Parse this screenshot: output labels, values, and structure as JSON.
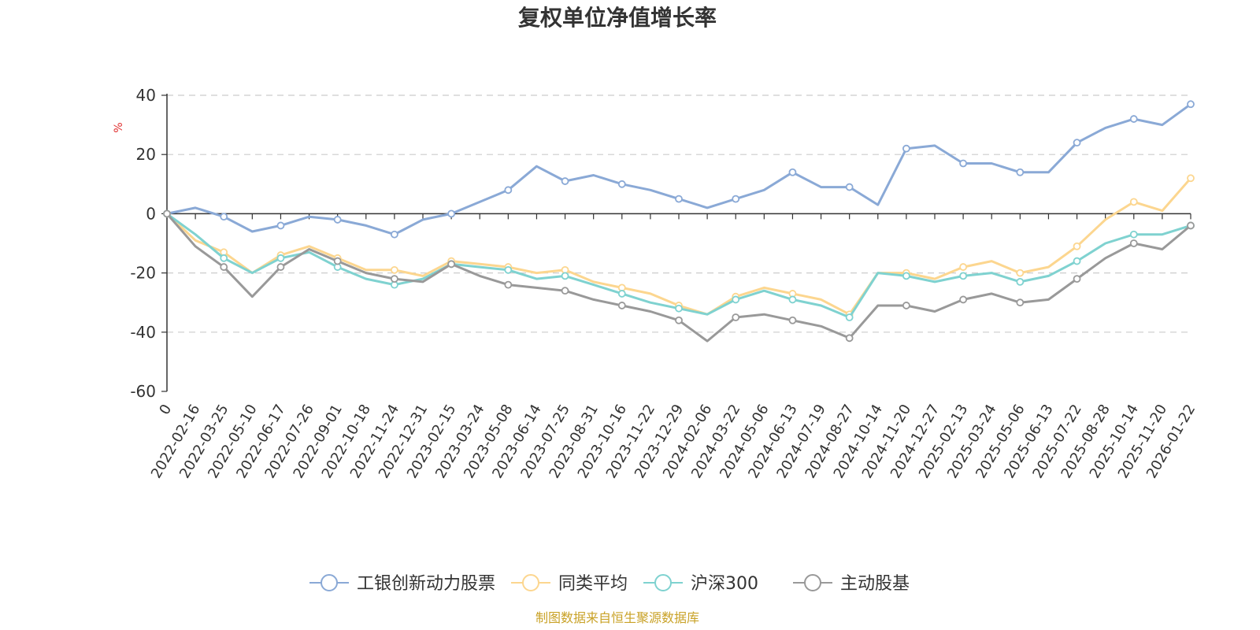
{
  "chart_data": {
    "type": "line",
    "title": "复权单位净值增长率",
    "unit": "%",
    "ylim": [
      -60,
      40
    ],
    "yticks": [
      "40",
      "20",
      "0",
      "-20",
      "-40",
      "-60"
    ],
    "grid": true,
    "legend_position": "bottom",
    "source": "制图数据来自恒生聚源数据库",
    "x_tick_labels": [
      "0",
      "2022-02-16",
      "2022-03-25",
      "2022-05-10",
      "2022-06-17",
      "2022-07-26",
      "2022-09-01",
      "2022-10-18",
      "2022-11-24",
      "2022-12-31",
      "2023-02-15",
      "2023-03-24",
      "2023-05-08",
      "2023-06-14",
      "2023-07-25",
      "2023-08-31",
      "2023-10-16",
      "2023-11-22",
      "2023-12-29",
      "2024-02-06",
      "2024-03-22",
      "2024-05-06",
      "2024-06-13",
      "2024-07-19",
      "2024-08-27",
      "2024-10-14",
      "2024-11-20",
      "2024-12-27",
      "2025-02-13",
      "2025-03-24",
      "2025-05-06",
      "2025-06-13",
      "2025-07-22",
      "2025-08-28",
      "2025-10-14",
      "2025-11-20",
      "2026-01-22"
    ],
    "series": [
      {
        "name": "工银创新动力股票",
        "color": "#8aa9d6",
        "values": [
          0,
          2,
          -1,
          -6,
          -4,
          -1,
          -2,
          -4,
          -7,
          -2,
          0,
          4,
          8,
          16,
          11,
          13,
          10,
          8,
          5,
          2,
          5,
          8,
          14,
          9,
          9,
          3,
          22,
          23,
          17,
          17,
          14,
          14,
          24,
          29,
          32,
          30,
          37
        ]
      },
      {
        "name": "同类平均",
        "color": "#fcd68f",
        "values": [
          0,
          -9,
          -13,
          -20,
          -14,
          -11,
          -15,
          -19,
          -19,
          -21,
          -16,
          -17,
          -18,
          -20,
          -19,
          -23,
          -25,
          -27,
          -31,
          -34,
          -28,
          -25,
          -27,
          -29,
          -34,
          -20,
          -20,
          -22,
          -18,
          -16,
          -20,
          -18,
          -11,
          -2,
          4,
          1,
          12
        ]
      },
      {
        "name": "沪深300",
        "color": "#7fd2d0",
        "values": [
          0,
          -7,
          -15,
          -20,
          -15,
          -13,
          -18,
          -22,
          -24,
          -22,
          -17,
          -18,
          -19,
          -22,
          -21,
          -24,
          -27,
          -30,
          -32,
          -34,
          -29,
          -26,
          -29,
          -31,
          -35,
          -20,
          -21,
          -23,
          -21,
          -20,
          -23,
          -21,
          -16,
          -10,
          -7,
          -7,
          -4
        ]
      },
      {
        "name": "主动股基",
        "color": "#999999",
        "values": [
          0,
          -11,
          -18,
          -28,
          -18,
          -12,
          -16,
          -20,
          -22,
          -23,
          -17,
          -21,
          -24,
          -25,
          -26,
          -29,
          -31,
          -33,
          -36,
          -43,
          -35,
          -34,
          -36,
          -38,
          -42,
          -31,
          -31,
          -33,
          -29,
          -27,
          -30,
          -29,
          -22,
          -15,
          -10,
          -12,
          -4
        ]
      }
    ]
  }
}
